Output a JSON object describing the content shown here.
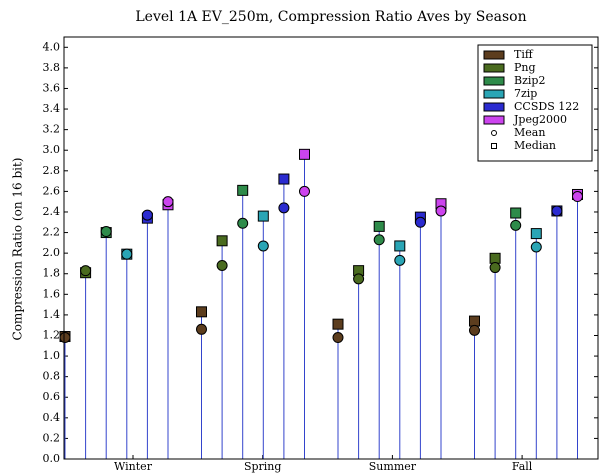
{
  "chart_data": {
    "type": "stem",
    "title": "Level 1A EV_250m, Compression Ratio Aves by Season",
    "y_label": "Compression Ratio (on 16 bit)",
    "categories": [
      "Winter",
      "Spring",
      "Summer",
      "Fall"
    ],
    "series": [
      {
        "name": "Tiff",
        "color": "#5c3d1e",
        "mean": [
          1.18,
          1.26,
          1.18,
          1.25
        ],
        "median": [
          1.19,
          1.43,
          1.31,
          1.34
        ]
      },
      {
        "name": "Png",
        "color": "#4a6b1f",
        "mean": [
          1.83,
          1.88,
          1.75,
          1.86
        ],
        "median": [
          1.81,
          2.12,
          1.83,
          1.95
        ]
      },
      {
        "name": "Bzip2",
        "color": "#2e8b4a",
        "mean": [
          2.21,
          2.29,
          2.13,
          2.27
        ],
        "median": [
          2.2,
          2.61,
          2.26,
          2.39
        ]
      },
      {
        "name": "7zip",
        "color": "#2aa5b5",
        "mean": [
          1.99,
          2.07,
          1.93,
          2.06
        ],
        "median": [
          1.99,
          2.36,
          2.07,
          2.19
        ]
      },
      {
        "name": "CCSDS 122",
        "color": "#2b2bd0",
        "mean": [
          2.37,
          2.44,
          2.3,
          2.41
        ],
        "median": [
          2.34,
          2.72,
          2.35,
          2.41
        ]
      },
      {
        "name": "Jpeg2000",
        "color": "#cc44ee",
        "mean": [
          2.5,
          2.6,
          2.41,
          2.55
        ],
        "median": [
          2.47,
          2.96,
          2.48,
          2.57
        ]
      }
    ],
    "marker_legend": {
      "mean": "Mean",
      "median": "Median"
    },
    "stem_color": "#3344cc",
    "ylim": [
      0,
      4.1
    ],
    "yticks": [
      {
        "value": 0,
        "label": "0.0"
      },
      0.2,
      0.4,
      0.6,
      0.8,
      {
        "value": 1,
        "label": "1.0"
      },
      1.2,
      1.4,
      1.6,
      1.8,
      {
        "value": 2,
        "label": "2.0"
      },
      2.2,
      2.4,
      2.6,
      2.8,
      {
        "value": 3,
        "label": "3.0"
      },
      3.2,
      3.4,
      3.6,
      3.8,
      {
        "value": 4,
        "label": "4.0"
      }
    ],
    "legend": "upper right"
  }
}
